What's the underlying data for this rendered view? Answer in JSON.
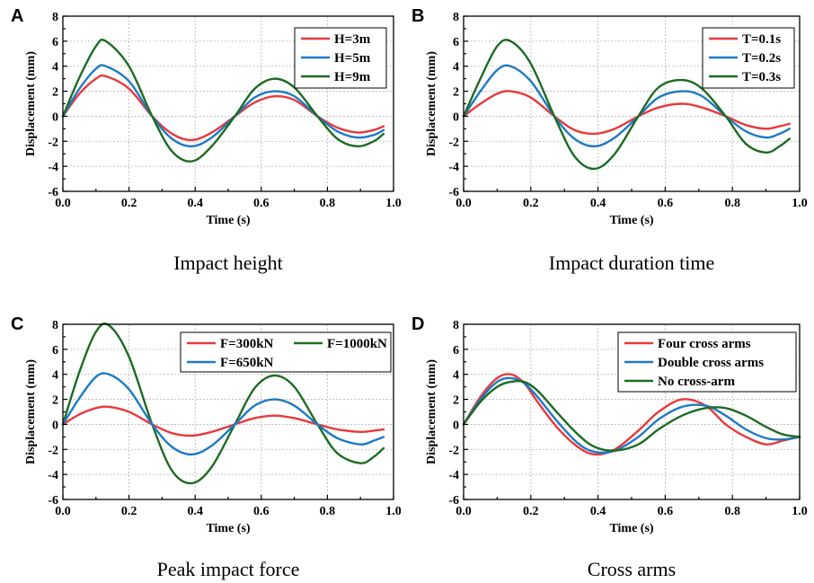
{
  "chart_data": [
    {
      "type": "line",
      "panel_label": "A",
      "caption": "Impact height",
      "xlabel": "Time (s)",
      "ylabel": "Displacement (mm)",
      "xlim": [
        0.0,
        1.0
      ],
      "ylim": [
        -6,
        8
      ],
      "xticks": [
        "0.0",
        "0.2",
        "0.4",
        "0.6",
        "0.8",
        "1.0"
      ],
      "yticks": [
        "-6",
        "-4",
        "-2",
        "0",
        "2",
        "4",
        "6",
        "8"
      ],
      "grid": true,
      "legend_position": "top-right",
      "x": [
        0.0,
        0.05,
        0.1,
        0.13,
        0.2,
        0.27,
        0.33,
        0.39,
        0.45,
        0.52,
        0.58,
        0.64,
        0.7,
        0.77,
        0.83,
        0.89,
        0.94,
        0.97
      ],
      "series": [
        {
          "name": "H=3m",
          "color": "#e8393b",
          "values": [
            0.0,
            1.8,
            3.0,
            3.2,
            2.2,
            0.0,
            -1.4,
            -1.9,
            -1.3,
            0.0,
            1.1,
            1.6,
            1.3,
            0.0,
            -0.9,
            -1.3,
            -1.1,
            -0.8
          ]
        },
        {
          "name": "H=5m",
          "color": "#1f7ac4",
          "values": [
            0.0,
            2.2,
            3.8,
            4.0,
            2.8,
            0.0,
            -1.8,
            -2.4,
            -1.7,
            0.0,
            1.5,
            2.0,
            1.6,
            0.0,
            -1.2,
            -1.7,
            -1.5,
            -1.1
          ]
        },
        {
          "name": "H=9m",
          "color": "#1d6b23",
          "values": [
            0.0,
            3.1,
            5.6,
            6.0,
            4.0,
            0.0,
            -2.8,
            -3.6,
            -2.4,
            0.0,
            2.2,
            3.0,
            2.3,
            0.0,
            -1.8,
            -2.4,
            -2.0,
            -1.4
          ]
        }
      ]
    },
    {
      "type": "line",
      "panel_label": "B",
      "caption": "Impact duration time",
      "xlabel": "Time (s)",
      "ylabel": "Displacement (mm)",
      "xlim": [
        0.0,
        1.0
      ],
      "ylim": [
        -6,
        8
      ],
      "xticks": [
        "0.0",
        "0.2",
        "0.4",
        "0.6",
        "0.8",
        "1.0"
      ],
      "yticks": [
        "-6",
        "-4",
        "-2",
        "0",
        "2",
        "4",
        "6",
        "8"
      ],
      "grid": true,
      "legend_position": "top-right",
      "x": [
        0.0,
        0.05,
        0.1,
        0.14,
        0.2,
        0.27,
        0.33,
        0.39,
        0.45,
        0.52,
        0.58,
        0.65,
        0.71,
        0.78,
        0.84,
        0.9,
        0.94,
        0.97
      ],
      "series": [
        {
          "name": "T=0.1s",
          "color": "#e8393b",
          "values": [
            0.0,
            1.0,
            1.8,
            2.0,
            1.5,
            0.0,
            -1.1,
            -1.4,
            -1.0,
            0.0,
            0.7,
            1.0,
            0.7,
            0.0,
            -0.7,
            -1.0,
            -0.8,
            -0.6
          ]
        },
        {
          "name": "T=0.2s",
          "color": "#1f7ac4",
          "values": [
            0.0,
            2.0,
            3.7,
            4.0,
            2.8,
            0.0,
            -1.8,
            -2.4,
            -1.7,
            0.0,
            1.5,
            2.0,
            1.6,
            0.0,
            -1.2,
            -1.7,
            -1.4,
            -1.0
          ]
        },
        {
          "name": "T=0.3s",
          "color": "#1d6b23",
          "values": [
            0.0,
            3.0,
            5.6,
            6.0,
            4.2,
            0.0,
            -3.2,
            -4.2,
            -3.0,
            0.0,
            2.3,
            2.9,
            2.2,
            0.0,
            -2.2,
            -2.9,
            -2.4,
            -1.8
          ]
        }
      ]
    },
    {
      "type": "line",
      "panel_label": "C",
      "caption": "Peak impact force",
      "xlabel": "Time (s)",
      "ylabel": "Displacement (mm)",
      "xlim": [
        0.0,
        1.0
      ],
      "ylim": [
        -6,
        8
      ],
      "xticks": [
        "0.0",
        "0.2",
        "0.4",
        "0.6",
        "0.8",
        "1.0"
      ],
      "yticks": [
        "-6",
        "-4",
        "-2",
        "0",
        "2",
        "4",
        "6",
        "8"
      ],
      "grid": true,
      "legend_position": "top-right",
      "legend_columns": 2,
      "x": [
        0.0,
        0.05,
        0.1,
        0.14,
        0.2,
        0.27,
        0.33,
        0.39,
        0.45,
        0.52,
        0.58,
        0.64,
        0.7,
        0.77,
        0.83,
        0.9,
        0.94,
        0.97
      ],
      "series": [
        {
          "name": "F=300kN",
          "color": "#e8393b",
          "values": [
            0.0,
            0.8,
            1.3,
            1.4,
            1.0,
            0.0,
            -0.7,
            -0.9,
            -0.6,
            0.0,
            0.5,
            0.7,
            0.5,
            0.0,
            -0.4,
            -0.6,
            -0.5,
            -0.4
          ]
        },
        {
          "name": "F=1000kN",
          "color": "#1d6b23",
          "values": [
            0.0,
            4.2,
            7.4,
            7.9,
            5.4,
            0.0,
            -3.7,
            -4.7,
            -3.4,
            0.0,
            2.9,
            3.9,
            3.0,
            0.0,
            -2.3,
            -3.1,
            -2.6,
            -1.9
          ]
        },
        {
          "name": "F=650kN",
          "color": "#1f7ac4",
          "values": [
            0.0,
            2.1,
            3.8,
            4.0,
            2.8,
            0.0,
            -1.8,
            -2.4,
            -1.7,
            0.0,
            1.5,
            2.0,
            1.5,
            0.0,
            -1.1,
            -1.6,
            -1.3,
            -1.0
          ]
        }
      ]
    },
    {
      "type": "line",
      "panel_label": "D",
      "caption": "Cross arms",
      "xlabel": "Time (s)",
      "ylabel": "Displacement (mm)",
      "xlim": [
        0.0,
        1.0
      ],
      "ylim": [
        -6,
        8
      ],
      "xticks": [
        "0.0",
        "0.2",
        "0.4",
        "0.6",
        "0.8",
        "1.0"
      ],
      "yticks": [
        "-6",
        "-4",
        "-2",
        "0",
        "2",
        "4",
        "6",
        "8"
      ],
      "grid": true,
      "legend_position": "top-right",
      "x": [
        0.0,
        0.05,
        0.1,
        0.14,
        0.18,
        0.22,
        0.28,
        0.34,
        0.39,
        0.45,
        0.52,
        0.58,
        0.65,
        0.72,
        0.78,
        0.84,
        0.9,
        0.95,
        1.0
      ],
      "series": [
        {
          "name": "Four cross arms",
          "color": "#e8393b",
          "values": [
            0.0,
            2.2,
            3.7,
            4.0,
            3.3,
            1.8,
            -0.3,
            -1.8,
            -2.4,
            -2.0,
            -0.5,
            1.0,
            2.0,
            1.5,
            0.0,
            -1.0,
            -1.6,
            -1.3,
            -1.0
          ]
        },
        {
          "name": "Double cross arms",
          "color": "#1f7ac4",
          "values": [
            0.0,
            2.0,
            3.4,
            3.7,
            3.3,
            2.2,
            0.2,
            -1.5,
            -2.2,
            -2.1,
            -1.0,
            0.4,
            1.4,
            1.5,
            0.7,
            -0.4,
            -1.1,
            -1.2,
            -1.0
          ]
        },
        {
          "name": "No cross-arm",
          "color": "#1d6b23",
          "values": [
            0.0,
            1.8,
            3.0,
            3.4,
            3.4,
            2.7,
            0.9,
            -0.8,
            -1.8,
            -2.1,
            -1.6,
            -0.4,
            0.7,
            1.3,
            1.3,
            0.7,
            -0.2,
            -0.8,
            -1.0
          ]
        }
      ]
    }
  ]
}
